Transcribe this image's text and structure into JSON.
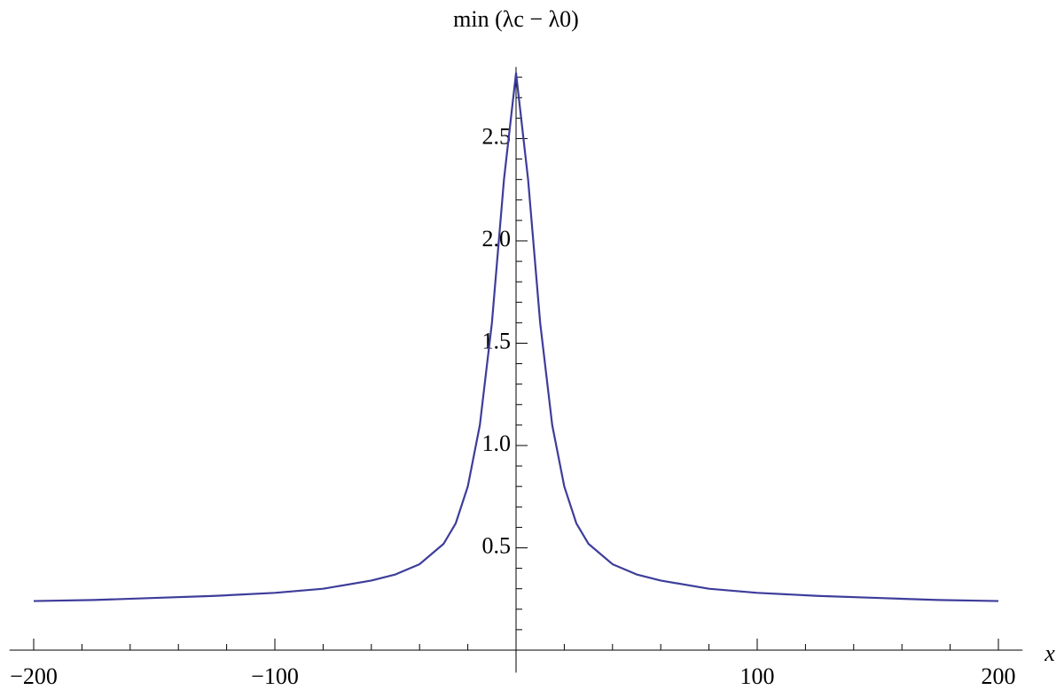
{
  "chart_data": {
    "type": "line",
    "title": "min (λc − λ0)",
    "x_label": "x",
    "x": [
      -200,
      -175,
      -150,
      -125,
      -100,
      -80,
      -60,
      -50,
      -40,
      -30,
      -25,
      -20,
      -15,
      -10,
      -5,
      0,
      5,
      10,
      15,
      20,
      25,
      30,
      40,
      50,
      60,
      80,
      100,
      125,
      150,
      175,
      200
    ],
    "values": [
      0.24,
      0.245,
      0.255,
      0.265,
      0.28,
      0.3,
      0.34,
      0.37,
      0.42,
      0.52,
      0.62,
      0.8,
      1.1,
      1.6,
      2.3,
      2.82,
      2.3,
      1.6,
      1.1,
      0.8,
      0.62,
      0.52,
      0.42,
      0.37,
      0.34,
      0.3,
      0.28,
      0.265,
      0.255,
      0.245,
      0.24
    ],
    "color": "#3d3d9b",
    "xlim": [
      -210,
      210
    ],
    "ylim": [
      -0.11,
      2.85
    ],
    "xticks": [
      {
        "value": -200,
        "label": "−200"
      },
      {
        "value": -100,
        "label": "−100"
      },
      100,
      200
    ],
    "yticks": [
      0.5,
      {
        "value": 1,
        "label": "1.0"
      },
      1.5,
      {
        "value": 2,
        "label": "2.0"
      },
      2.5
    ],
    "xminorticks": [
      -180,
      -160,
      -140,
      -120,
      -80,
      -60,
      -40,
      -20,
      20,
      40,
      60,
      80,
      120,
      140,
      160,
      180
    ],
    "yminorticks": [
      0.1,
      0.2,
      0.3,
      0.4,
      0.6,
      0.7,
      0.8,
      0.9,
      1.1,
      1.2,
      1.3,
      1.4,
      1.6,
      1.7,
      1.8,
      1.9,
      2.1,
      2.2,
      2.3,
      2.4,
      2.6,
      2.7,
      2.8
    ],
    "grid": false
  }
}
